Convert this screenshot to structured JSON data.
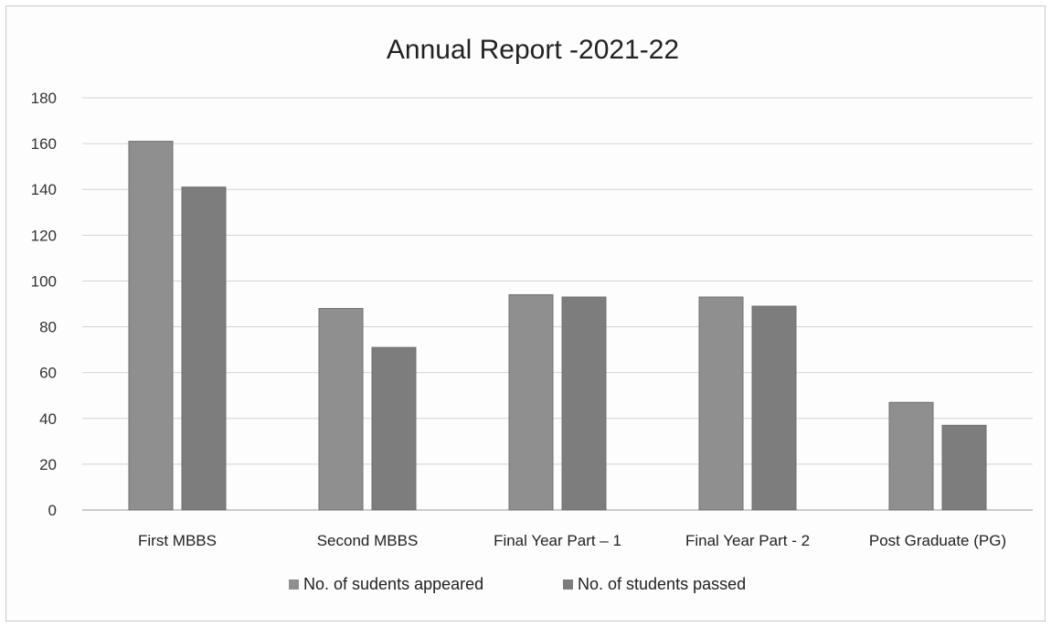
{
  "colors": {
    "appeared": "#8f8f8f",
    "passed": "#7d7d7d",
    "grid": "#d4d4d4",
    "axis": "#9a9a9a"
  },
  "chart_data": {
    "type": "bar",
    "title": "Annual Report -2021-22",
    "xlabel": "",
    "ylabel": "",
    "categories": [
      "First MBBS",
      "Second MBBS",
      "Final Year Part – 1",
      "Final Year Part - 2",
      "Post Graduate (PG)"
    ],
    "series": [
      {
        "name": "No. of sudents appeared",
        "values": [
          161,
          88,
          94,
          93,
          47
        ]
      },
      {
        "name": "No. of students passed",
        "values": [
          141,
          71,
          93,
          89,
          37
        ]
      }
    ],
    "ylim": [
      0,
      180
    ],
    "yticks": [
      0,
      20,
      40,
      60,
      80,
      100,
      120,
      140,
      160,
      180
    ],
    "grid": true,
    "legend_position": "bottom"
  }
}
